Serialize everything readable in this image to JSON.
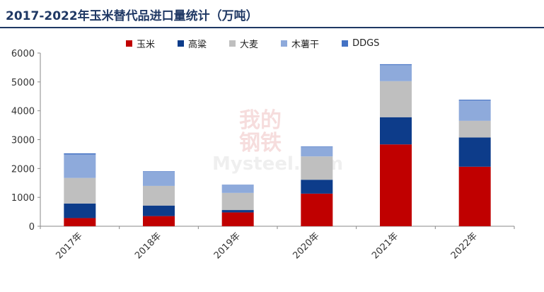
{
  "title": "2017-2022年玉米替代品进口量统计（万吨）",
  "watermark": {
    "line1": "我的",
    "line2": "钢铁",
    "line3": "Mysteel.com"
  },
  "colors": {
    "玉米": "#c00000",
    "高粱": "#0d3c8a",
    "大麦": "#bfbfbf",
    "木薯干": "#8eaadb",
    "DDGS": "#4472c4",
    "title": "#1f3864"
  },
  "chart_data": {
    "type": "bar",
    "stacked": true,
    "categories": [
      "2017年",
      "2018年",
      "2019年",
      "2020年",
      "2021年",
      "2022年"
    ],
    "series": [
      {
        "name": "玉米",
        "values": [
          283,
          352,
          479,
          1130,
          2835,
          2062
        ]
      },
      {
        "name": "高粱",
        "values": [
          505,
          365,
          83,
          481,
          942,
          1014
        ]
      },
      {
        "name": "大麦",
        "values": [
          886,
          681,
          593,
          808,
          1248,
          576
        ]
      },
      {
        "name": "木薯干",
        "values": [
          813,
          489,
          270,
          336,
          557,
          702
        ]
      },
      {
        "name": "DDGS",
        "values": [
          39,
          17,
          13,
          11,
          30,
          30
        ]
      }
    ],
    "yticks": [
      0,
      1000,
      2000,
      3000,
      4000,
      5000,
      6000
    ],
    "ylim": [
      0,
      6000
    ],
    "legend_position": "top",
    "grid": false
  }
}
